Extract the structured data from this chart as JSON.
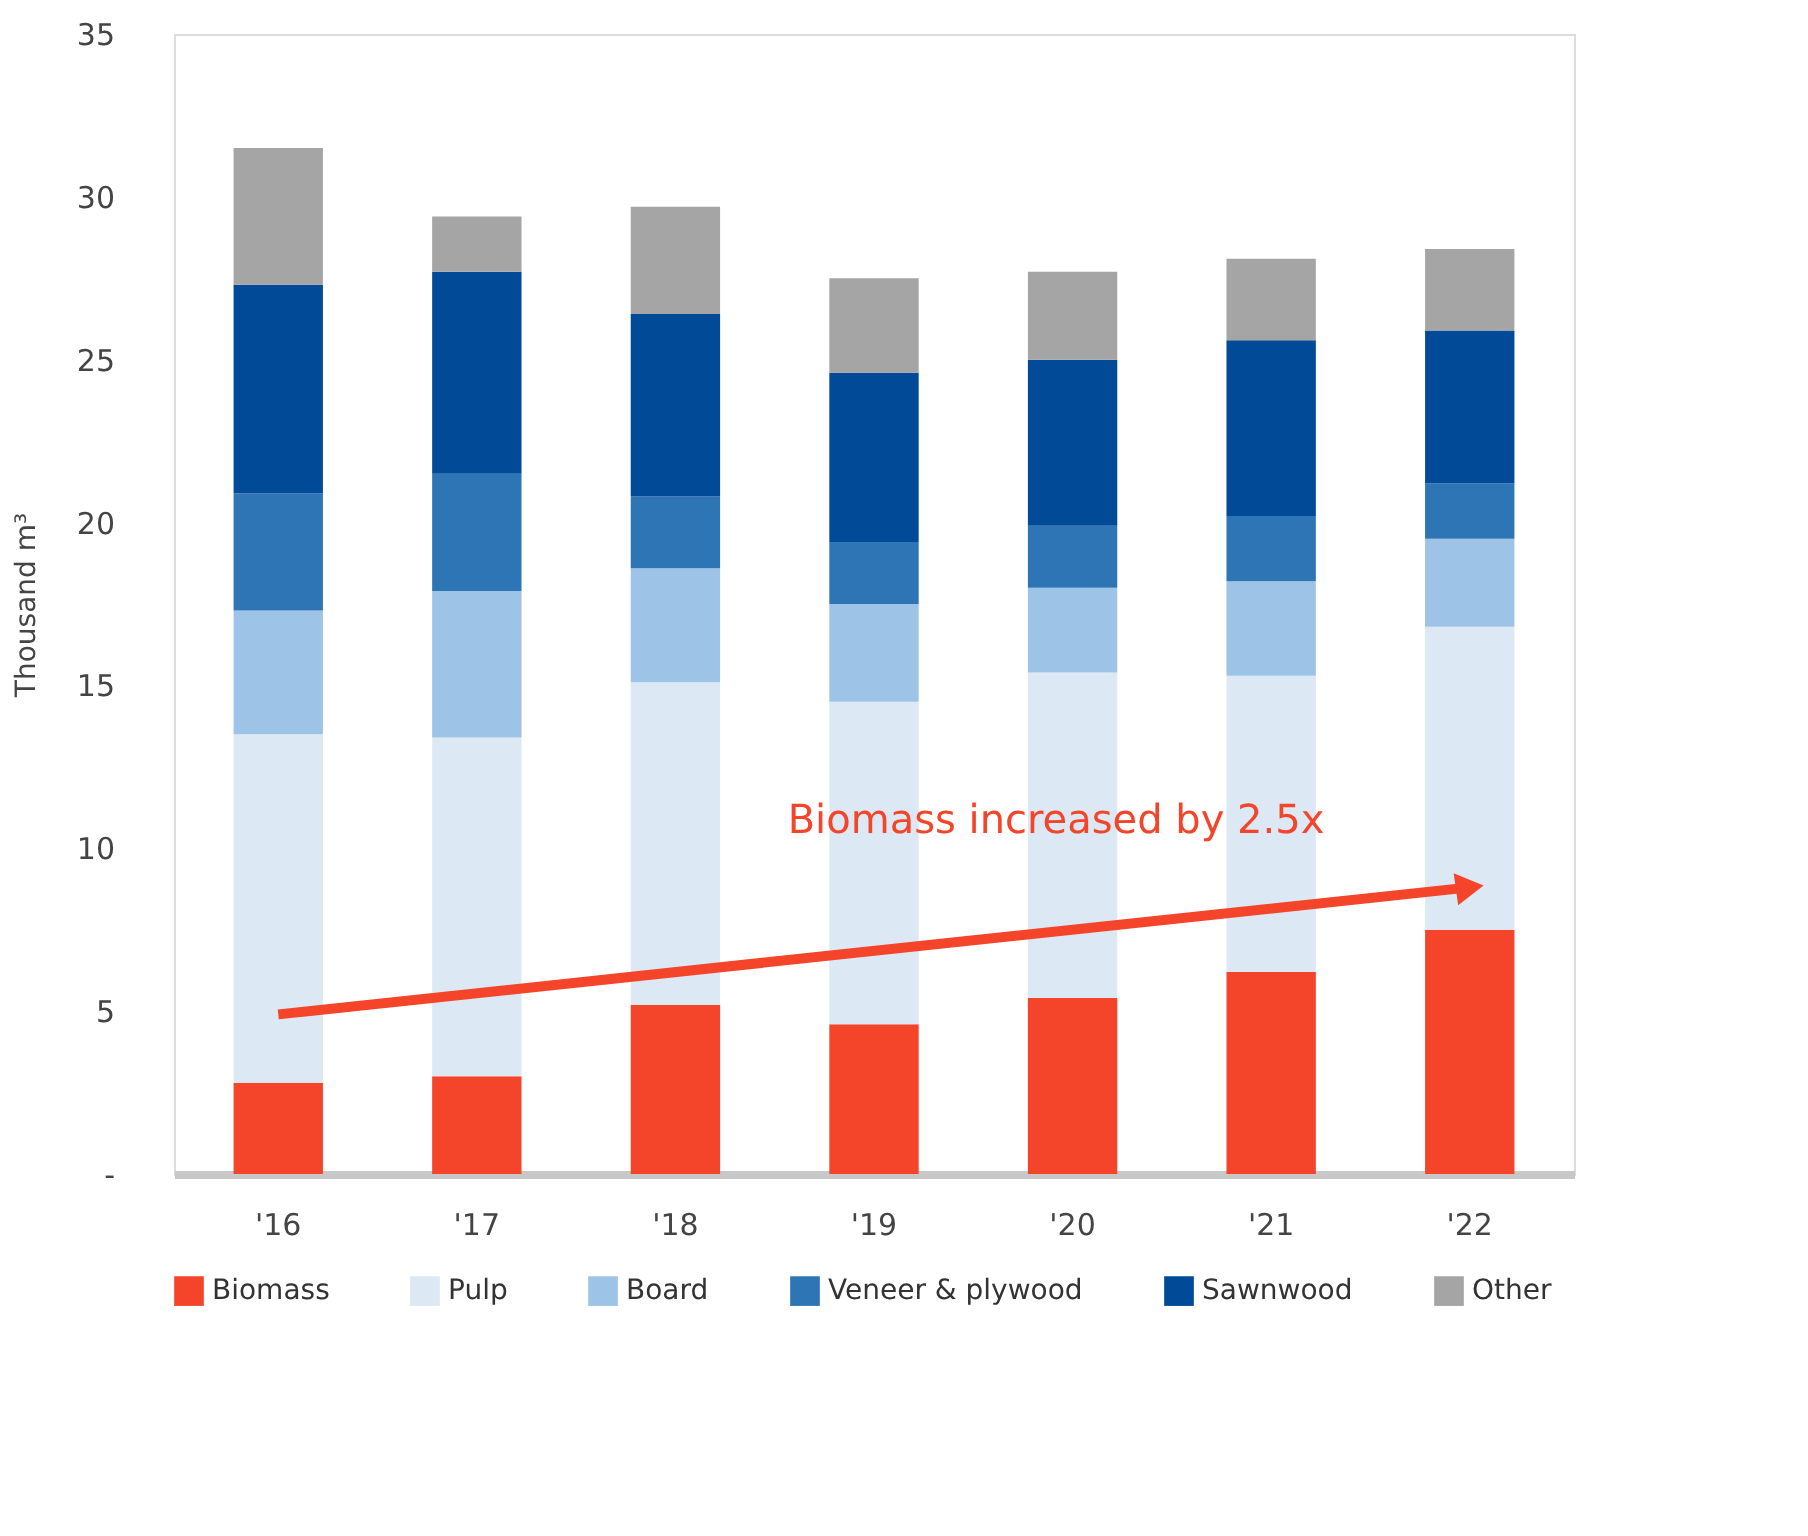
{
  "chart_data": {
    "type": "bar",
    "stacked": true,
    "ylabel": "Thousand m³",
    "categories": [
      "'16",
      "'17",
      "'18",
      "'19",
      "'20",
      "'21",
      "'22"
    ],
    "series": [
      {
        "name": "Biomass",
        "color": "#f4442a",
        "values": [
          2.8,
          3.0,
          5.2,
          4.6,
          5.4,
          6.2,
          7.5
        ]
      },
      {
        "name": "Pulp",
        "color": "#dce9f5",
        "values": [
          10.7,
          10.4,
          9.9,
          9.9,
          10.0,
          9.1,
          9.3
        ]
      },
      {
        "name": "Board",
        "color": "#9dc3e6",
        "values": [
          3.8,
          4.5,
          3.5,
          3.0,
          2.6,
          2.9,
          2.7
        ]
      },
      {
        "name": "Veneer & plywood",
        "color": "#2e75b6",
        "values": [
          3.6,
          3.6,
          2.2,
          1.9,
          1.9,
          2.0,
          1.7
        ]
      },
      {
        "name": "Sawnwood",
        "color": "#004a98",
        "values": [
          6.4,
          6.2,
          5.6,
          5.2,
          5.1,
          5.4,
          4.7
        ]
      },
      {
        "name": "Other",
        "color": "#a5a5a5",
        "values": [
          4.2,
          1.7,
          3.3,
          2.9,
          2.7,
          2.5,
          2.5
        ]
      }
    ],
    "ylim": [
      0,
      35
    ],
    "yticks": [
      {
        "value": 0,
        "label": "-"
      },
      5,
      10,
      15,
      20,
      25,
      30,
      35
    ],
    "annotations": [
      "Biomass increased by 2.5x"
    ],
    "grid": false,
    "legend": "bottom"
  }
}
